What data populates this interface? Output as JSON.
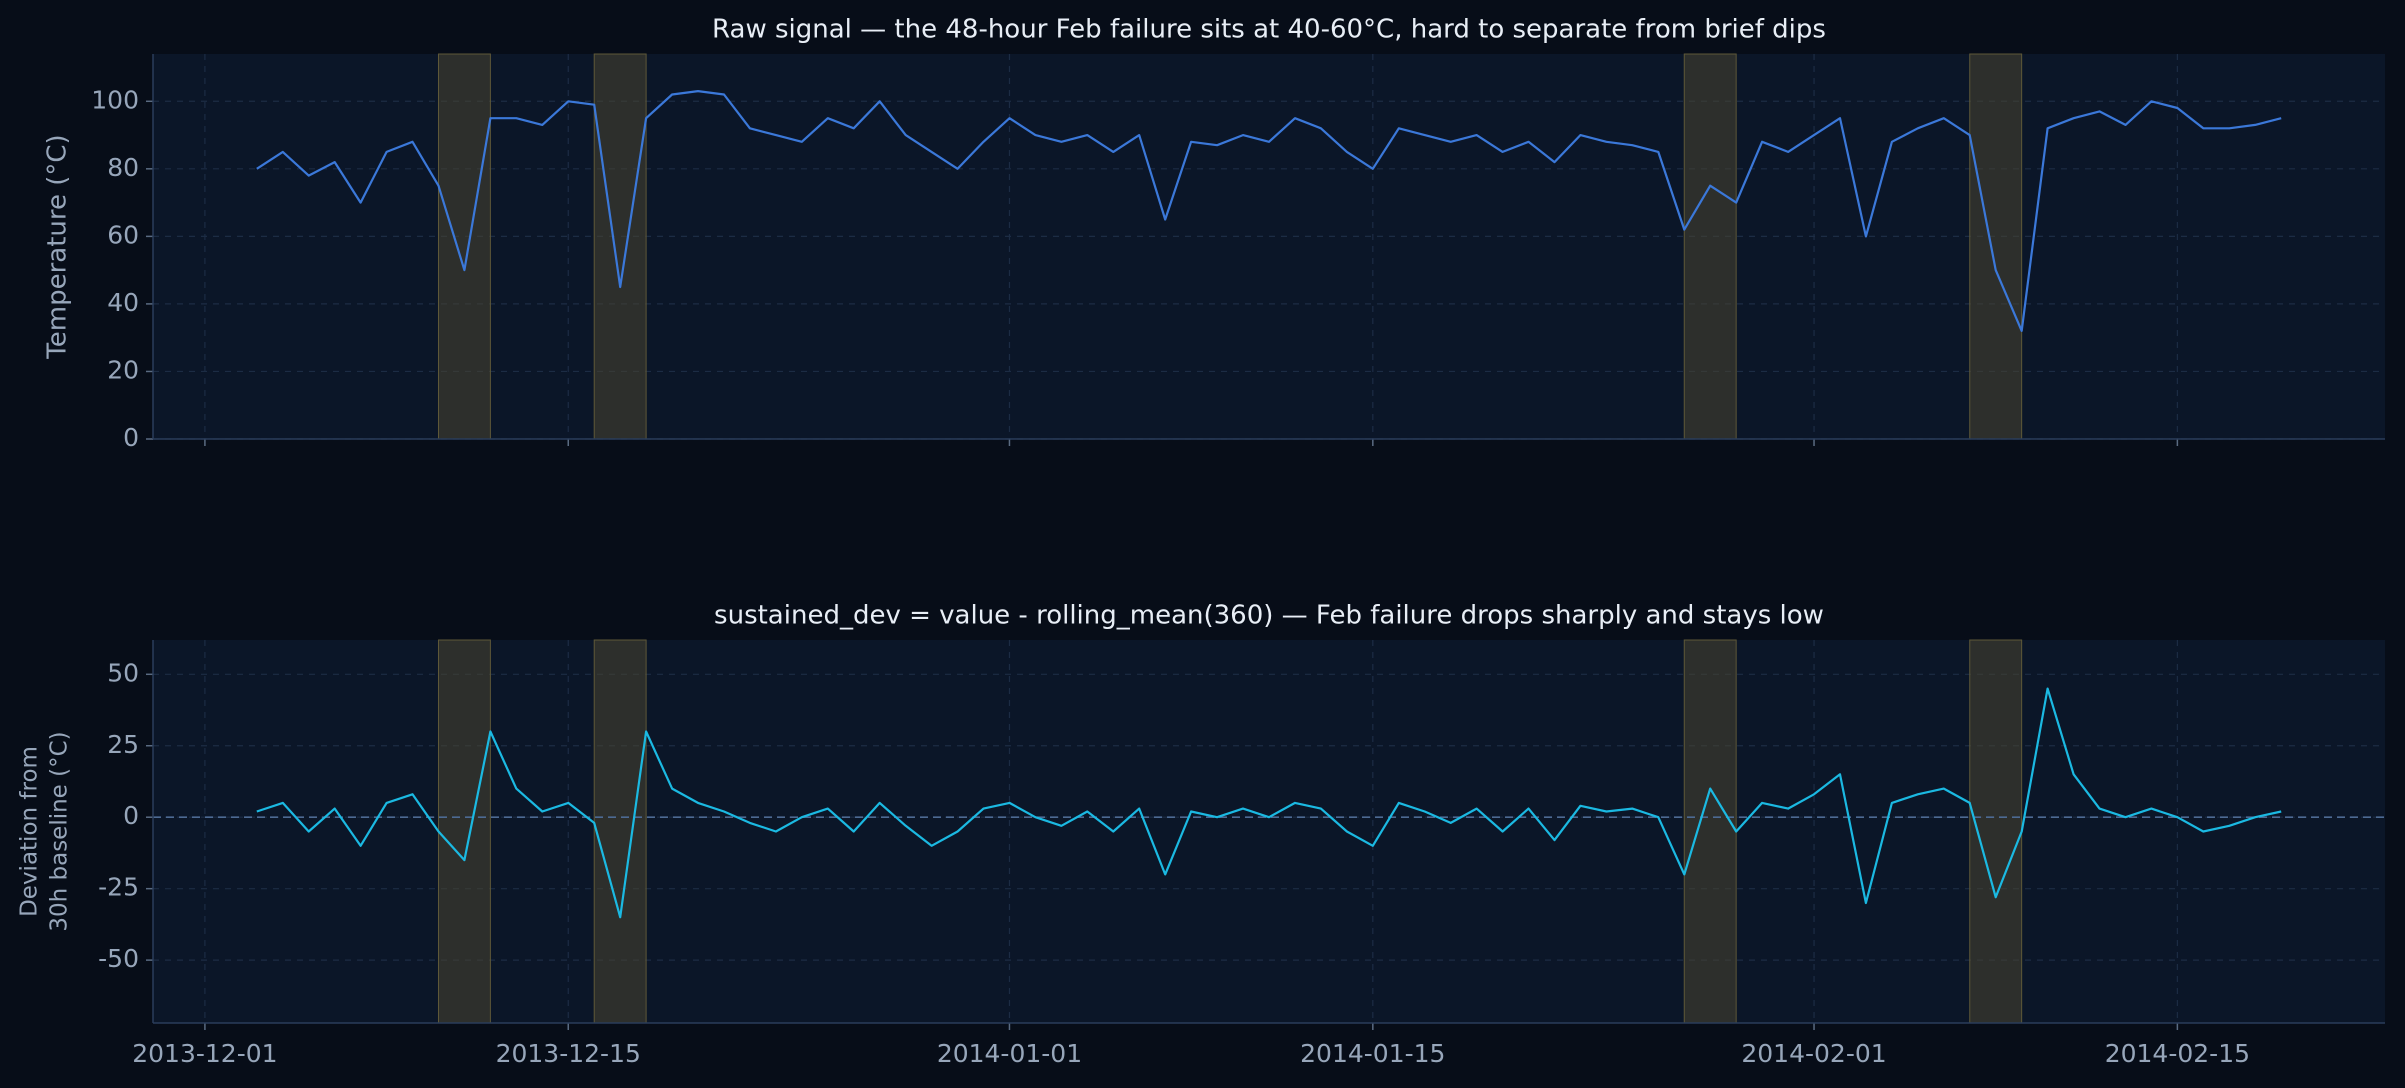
{
  "chart_data": [
    {
      "type": "line",
      "title": "Raw signal — the 48-hour Feb failure sits at 40-60°C, hard to separate from brief dips",
      "ylabel": [
        "Temperature (°C)"
      ],
      "x": [
        "2013-12-03",
        "2013-12-04",
        "2013-12-05",
        "2013-12-06",
        "2013-12-07",
        "2013-12-08",
        "2013-12-09",
        "2013-12-10",
        "2013-12-11",
        "2013-12-12",
        "2013-12-13",
        "2013-12-14",
        "2013-12-15",
        "2013-12-16",
        "2013-12-17",
        "2013-12-18",
        "2013-12-19",
        "2013-12-20",
        "2013-12-21",
        "2013-12-22",
        "2013-12-23",
        "2013-12-24",
        "2013-12-25",
        "2013-12-26",
        "2013-12-27",
        "2013-12-28",
        "2013-12-29",
        "2013-12-30",
        "2013-12-31",
        "2014-01-01",
        "2014-01-02",
        "2014-01-03",
        "2014-01-04",
        "2014-01-05",
        "2014-01-06",
        "2014-01-07",
        "2014-01-08",
        "2014-01-09",
        "2014-01-10",
        "2014-01-11",
        "2014-01-12",
        "2014-01-13",
        "2014-01-14",
        "2014-01-15",
        "2014-01-16",
        "2014-01-17",
        "2014-01-18",
        "2014-01-19",
        "2014-01-20",
        "2014-01-21",
        "2014-01-22",
        "2014-01-23",
        "2014-01-24",
        "2014-01-25",
        "2014-01-26",
        "2014-01-27",
        "2014-01-28",
        "2014-01-29",
        "2014-01-30",
        "2014-01-31",
        "2014-02-01",
        "2014-02-02",
        "2014-02-03",
        "2014-02-04",
        "2014-02-05",
        "2014-02-06",
        "2014-02-07",
        "2014-02-08",
        "2014-02-09",
        "2014-02-10",
        "2014-02-11",
        "2014-02-12",
        "2014-02-13",
        "2014-02-14",
        "2014-02-15",
        "2014-02-16",
        "2014-02-17",
        "2014-02-18",
        "2014-02-19"
      ],
      "values": [
        80,
        85,
        78,
        82,
        70,
        85,
        88,
        75,
        50,
        95,
        95,
        93,
        100,
        99,
        45,
        95,
        102,
        103,
        102,
        92,
        90,
        88,
        95,
        92,
        100,
        90,
        85,
        80,
        88,
        95,
        90,
        88,
        90,
        85,
        90,
        65,
        88,
        87,
        90,
        88,
        95,
        92,
        85,
        80,
        92,
        90,
        88,
        90,
        85,
        88,
        82,
        90,
        88,
        87,
        85,
        62,
        75,
        70,
        88,
        85,
        90,
        95,
        60,
        88,
        92,
        95,
        90,
        50,
        32,
        92,
        95,
        97,
        93,
        100,
        98,
        92,
        92,
        93,
        95
      ],
      "color": "#3b78d9",
      "spans": [
        [
          "2013-12-10",
          "2013-12-12"
        ],
        [
          "2013-12-16",
          "2013-12-18"
        ],
        [
          "2014-01-27",
          "2014-01-29"
        ],
        [
          "2014-02-07",
          "2014-02-09"
        ]
      ],
      "xlim": [
        "2013-11-29",
        "2014-02-23"
      ],
      "ylim": [
        0,
        114
      ],
      "yticks": [
        0,
        20,
        40,
        60,
        80,
        100
      ],
      "grid": true
    },
    {
      "type": "line",
      "title": "sustained_dev = value - rolling_mean(360)  —  Feb failure drops sharply and stays low",
      "ylabel": [
        "Deviation from",
        "30h baseline (°C)"
      ],
      "x": [
        "2013-12-03",
        "2013-12-04",
        "2013-12-05",
        "2013-12-06",
        "2013-12-07",
        "2013-12-08",
        "2013-12-09",
        "2013-12-10",
        "2013-12-11",
        "2013-12-12",
        "2013-12-13",
        "2013-12-14",
        "2013-12-15",
        "2013-12-16",
        "2013-12-17",
        "2013-12-18",
        "2013-12-19",
        "2013-12-20",
        "2013-12-21",
        "2013-12-22",
        "2013-12-23",
        "2013-12-24",
        "2013-12-25",
        "2013-12-26",
        "2013-12-27",
        "2013-12-28",
        "2013-12-29",
        "2013-12-30",
        "2013-12-31",
        "2014-01-01",
        "2014-01-02",
        "2014-01-03",
        "2014-01-04",
        "2014-01-05",
        "2014-01-06",
        "2014-01-07",
        "2014-01-08",
        "2014-01-09",
        "2014-01-10",
        "2014-01-11",
        "2014-01-12",
        "2014-01-13",
        "2014-01-14",
        "2014-01-15",
        "2014-01-16",
        "2014-01-17",
        "2014-01-18",
        "2014-01-19",
        "2014-01-20",
        "2014-01-21",
        "2014-01-22",
        "2014-01-23",
        "2014-01-24",
        "2014-01-25",
        "2014-01-26",
        "2014-01-27",
        "2014-01-28",
        "2014-01-29",
        "2014-01-30",
        "2014-01-31",
        "2014-02-01",
        "2014-02-02",
        "2014-02-03",
        "2014-02-04",
        "2014-02-05",
        "2014-02-06",
        "2014-02-07",
        "2014-02-08",
        "2014-02-09",
        "2014-02-10",
        "2014-02-11",
        "2014-02-12",
        "2014-02-13",
        "2014-02-14",
        "2014-02-15",
        "2014-02-16",
        "2014-02-17",
        "2014-02-18",
        "2014-02-19"
      ],
      "values": [
        2,
        5,
        -5,
        3,
        -10,
        5,
        8,
        -5,
        -15,
        30,
        10,
        2,
        5,
        -2,
        -35,
        30,
        10,
        5,
        2,
        -2,
        -5,
        0,
        3,
        -5,
        5,
        -3,
        -10,
        -5,
        3,
        5,
        0,
        -3,
        2,
        -5,
        3,
        -20,
        2,
        0,
        3,
        0,
        5,
        3,
        -5,
        -10,
        5,
        2,
        -2,
        3,
        -5,
        3,
        -8,
        4,
        2,
        3,
        0,
        -20,
        10,
        -5,
        5,
        3,
        8,
        15,
        -30,
        5,
        8,
        10,
        5,
        -28,
        -5,
        45,
        15,
        3,
        0,
        3,
        0,
        -5,
        -3,
        0,
        2
      ],
      "color": "#1bb9e2",
      "spans": [
        [
          "2013-12-10",
          "2013-12-12"
        ],
        [
          "2013-12-16",
          "2013-12-18"
        ],
        [
          "2014-01-27",
          "2014-01-29"
        ],
        [
          "2014-02-07",
          "2014-02-09"
        ]
      ],
      "hline": 0,
      "xlim": [
        "2013-11-29",
        "2014-02-23"
      ],
      "xticks": [
        "2013-12-01",
        "2013-12-15",
        "2014-01-01",
        "2014-01-15",
        "2014-02-01",
        "2014-02-15"
      ],
      "ylim": [
        -72,
        62
      ],
      "yticks": [
        -50,
        -25,
        0,
        25,
        50
      ],
      "grid": true
    }
  ]
}
